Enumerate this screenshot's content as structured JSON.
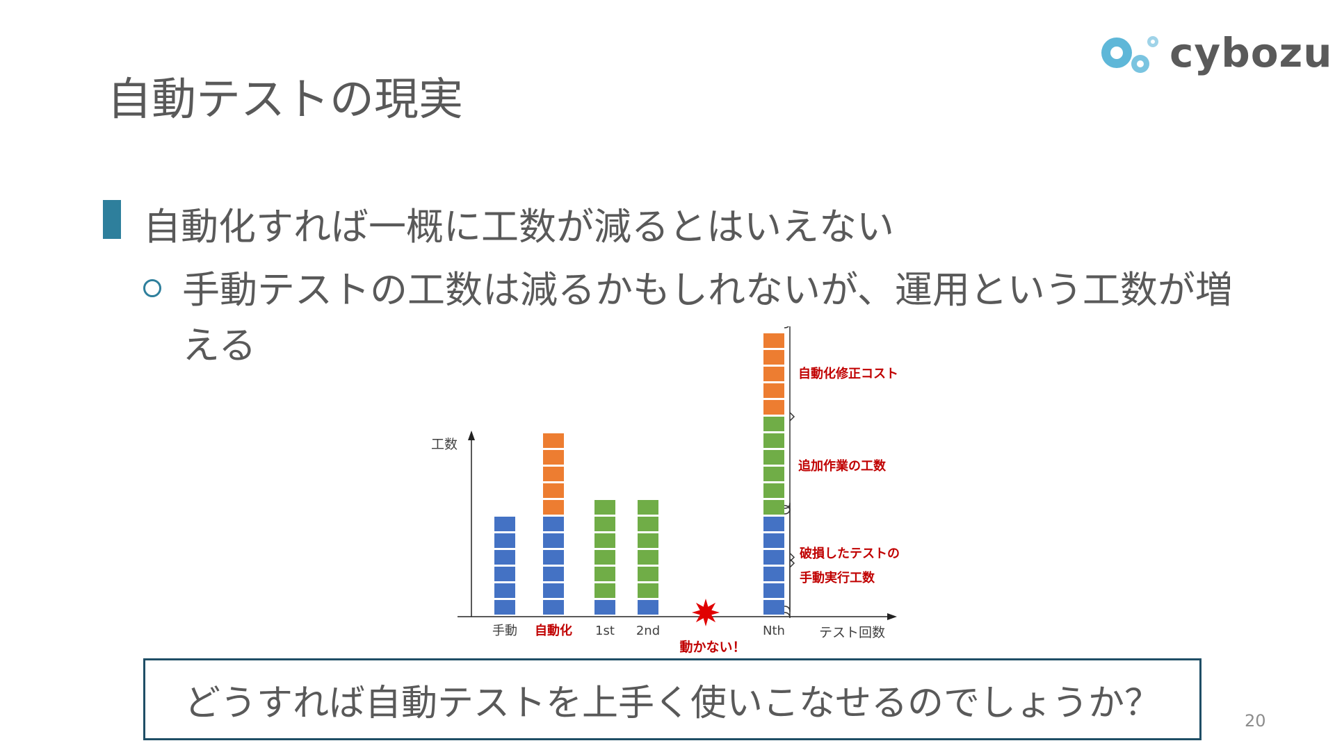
{
  "logo": {
    "text": "cybozu"
  },
  "slide": {
    "title": "自動テストの現実",
    "bullet": "自動化すれば一概に工数が減るとはいえない",
    "sub_bullet": "手動テストの工数は減るかもしれないが、運用という工数が増える",
    "callout": "どうすれば自動テストを上手く使いこなせるのでしょうか？",
    "page_number": "20"
  },
  "colors": {
    "accent": "#2e7f9c",
    "blue": "#4472c4",
    "orange": "#ed7d31",
    "green": "#70ad47",
    "red_label": "#c00000"
  },
  "chart_data": {
    "type": "bar",
    "ylabel": "工数",
    "xlabel": "テスト回数",
    "categories": [
      "手動",
      "自動化",
      "1st",
      "2nd",
      "",
      "Nth"
    ],
    "category_label_colors": [
      "#404040",
      "#c00000",
      "#404040",
      "#404040",
      "#404040",
      "#404040"
    ],
    "series": [
      {
        "name": "破損したテストの手動実行工数",
        "color": "#4472c4",
        "values": [
          6,
          6,
          1,
          1,
          0,
          6
        ]
      },
      {
        "name": "追加作業の工数",
        "color": "#70ad47",
        "values": [
          0,
          0,
          6,
          6,
          0,
          6
        ]
      },
      {
        "name": "自動化修正コスト",
        "color": "#ed7d31",
        "values": [
          0,
          5,
          0,
          0,
          0,
          5
        ]
      }
    ],
    "annotations": {
      "failure": "動かない！",
      "bracket_labels": [
        "自動化修正コスト",
        "追加作業の工数",
        "破損したテストの",
        "手動実行工数"
      ]
    }
  }
}
